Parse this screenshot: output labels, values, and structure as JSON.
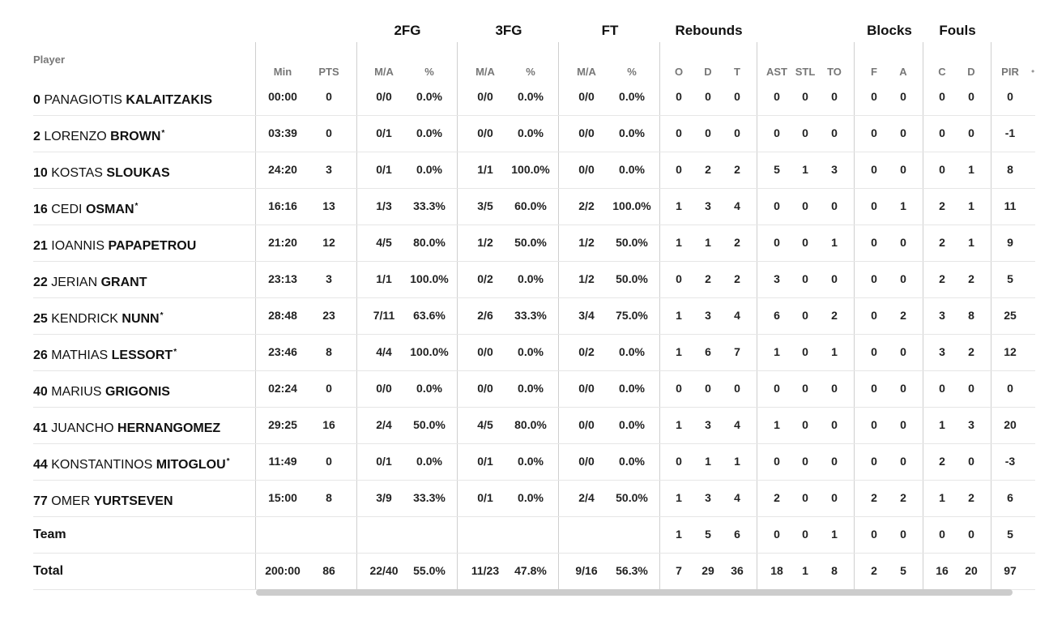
{
  "groups": [
    "2FG",
    "3FG",
    "FT",
    "Rebounds",
    "Blocks",
    "Fouls"
  ],
  "player_header": "Player",
  "columns": [
    "Min",
    "PTS",
    "M/A",
    "%",
    "M/A",
    "%",
    "M/A",
    "%",
    "O",
    "D",
    "T",
    "AST",
    "STL",
    "TO",
    "F",
    "A",
    "C",
    "D",
    "PIR"
  ],
  "overflow_hint": "•",
  "players": [
    {
      "num": "0",
      "first": "PANAGIOTIS",
      "last": "KALAITZAKIS",
      "star": "",
      "stats": [
        "00:00",
        "0",
        "0/0",
        "0.0%",
        "0/0",
        "0.0%",
        "0/0",
        "0.0%",
        "0",
        "0",
        "0",
        "0",
        "0",
        "0",
        "0",
        "0",
        "0",
        "0",
        "0"
      ]
    },
    {
      "num": "2",
      "first": "LORENZO",
      "last": "BROWN",
      "star": "*",
      "stats": [
        "03:39",
        "0",
        "0/1",
        "0.0%",
        "0/0",
        "0.0%",
        "0/0",
        "0.0%",
        "0",
        "0",
        "0",
        "0",
        "0",
        "0",
        "0",
        "0",
        "0",
        "0",
        "-1"
      ]
    },
    {
      "num": "10",
      "first": "KOSTAS",
      "last": "SLOUKAS",
      "star": "",
      "stats": [
        "24:20",
        "3",
        "0/1",
        "0.0%",
        "1/1",
        "100.0%",
        "0/0",
        "0.0%",
        "0",
        "2",
        "2",
        "5",
        "1",
        "3",
        "0",
        "0",
        "0",
        "1",
        "8"
      ]
    },
    {
      "num": "16",
      "first": "CEDI",
      "last": "OSMAN",
      "star": "*",
      "stats": [
        "16:16",
        "13",
        "1/3",
        "33.3%",
        "3/5",
        "60.0%",
        "2/2",
        "100.0%",
        "1",
        "3",
        "4",
        "0",
        "0",
        "0",
        "0",
        "1",
        "2",
        "1",
        "11"
      ]
    },
    {
      "num": "21",
      "first": "IOANNIS",
      "last": "PAPAPETROU",
      "star": "",
      "stats": [
        "21:20",
        "12",
        "4/5",
        "80.0%",
        "1/2",
        "50.0%",
        "1/2",
        "50.0%",
        "1",
        "1",
        "2",
        "0",
        "0",
        "1",
        "0",
        "0",
        "2",
        "1",
        "9"
      ]
    },
    {
      "num": "22",
      "first": "JERIAN",
      "last": "GRANT",
      "star": "",
      "stats": [
        "23:13",
        "3",
        "1/1",
        "100.0%",
        "0/2",
        "0.0%",
        "1/2",
        "50.0%",
        "0",
        "2",
        "2",
        "3",
        "0",
        "0",
        "0",
        "0",
        "2",
        "2",
        "5"
      ]
    },
    {
      "num": "25",
      "first": "KENDRICK",
      "last": "NUNN",
      "star": "*",
      "stats": [
        "28:48",
        "23",
        "7/11",
        "63.6%",
        "2/6",
        "33.3%",
        "3/4",
        "75.0%",
        "1",
        "3",
        "4",
        "6",
        "0",
        "2",
        "0",
        "2",
        "3",
        "8",
        "25"
      ]
    },
    {
      "num": "26",
      "first": "MATHIAS",
      "last": "LESSORT",
      "star": "*",
      "stats": [
        "23:46",
        "8",
        "4/4",
        "100.0%",
        "0/0",
        "0.0%",
        "0/2",
        "0.0%",
        "1",
        "6",
        "7",
        "1",
        "0",
        "1",
        "0",
        "0",
        "3",
        "2",
        "12"
      ]
    },
    {
      "num": "40",
      "first": "MARIUS",
      "last": "GRIGONIS",
      "star": "",
      "stats": [
        "02:24",
        "0",
        "0/0",
        "0.0%",
        "0/0",
        "0.0%",
        "0/0",
        "0.0%",
        "0",
        "0",
        "0",
        "0",
        "0",
        "0",
        "0",
        "0",
        "0",
        "0",
        "0"
      ]
    },
    {
      "num": "41",
      "first": "JUANCHO",
      "last": "HERNANGOMEZ",
      "star": "",
      "stats": [
        "29:25",
        "16",
        "2/4",
        "50.0%",
        "4/5",
        "80.0%",
        "0/0",
        "0.0%",
        "1",
        "3",
        "4",
        "1",
        "0",
        "0",
        "0",
        "0",
        "1",
        "3",
        "20"
      ]
    },
    {
      "num": "44",
      "first": "KONSTANTINOS",
      "last": "MITOGLOU",
      "star": "*",
      "stats": [
        "11:49",
        "0",
        "0/1",
        "0.0%",
        "0/1",
        "0.0%",
        "0/0",
        "0.0%",
        "0",
        "1",
        "1",
        "0",
        "0",
        "0",
        "0",
        "0",
        "2",
        "0",
        "-3"
      ]
    },
    {
      "num": "77",
      "first": "OMER",
      "last": "YURTSEVEN",
      "star": "",
      "stats": [
        "15:00",
        "8",
        "3/9",
        "33.3%",
        "0/1",
        "0.0%",
        "2/4",
        "50.0%",
        "1",
        "3",
        "4",
        "2",
        "0",
        "0",
        "2",
        "2",
        "1",
        "2",
        "6"
      ]
    }
  ],
  "team_row": {
    "label": "Team",
    "stats": [
      "",
      "",
      "",
      "",
      "",
      "",
      "",
      "",
      "1",
      "5",
      "6",
      "0",
      "0",
      "1",
      "0",
      "0",
      "0",
      "0",
      "5"
    ]
  },
  "total_row": {
    "label": "Total",
    "stats": [
      "200:00",
      "86",
      "22/40",
      "55.0%",
      "11/23",
      "47.8%",
      "9/16",
      "56.3%",
      "7",
      "29",
      "36",
      "18",
      "1",
      "8",
      "2",
      "5",
      "16",
      "20",
      "97"
    ]
  }
}
